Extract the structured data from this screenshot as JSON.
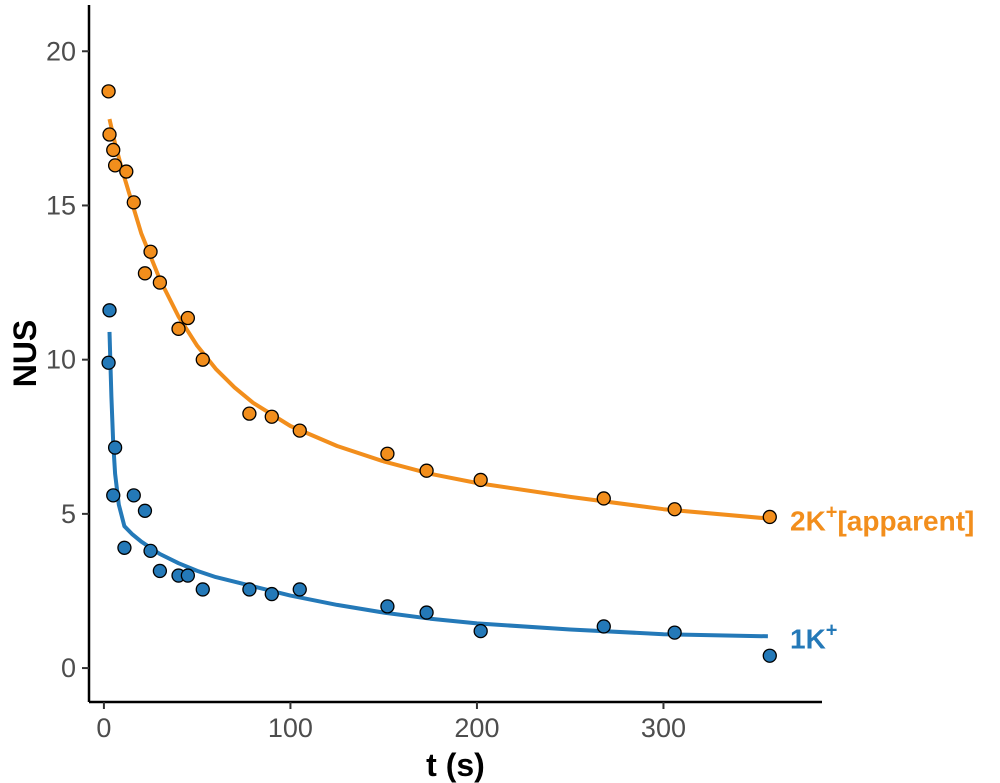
{
  "chart_data": {
    "type": "scatter",
    "xlabel": "t (s)",
    "ylabel": "NUS",
    "xlim": [
      -8,
      385
    ],
    "ylim": [
      -1.1,
      21.5
    ],
    "xticks": [
      0,
      100,
      200,
      300
    ],
    "yticks": [
      0,
      5,
      10,
      15,
      20
    ],
    "grid": false,
    "legend": "direct labels at right end of each series",
    "series": [
      {
        "name": "2K⁺[apparent]",
        "label_main": "2K",
        "label_sup": "+",
        "label_tail": "[apparent]",
        "color": "#f28e1c",
        "points": [
          {
            "x": 2.5,
            "y": 18.7
          },
          {
            "x": 3,
            "y": 17.3
          },
          {
            "x": 5,
            "y": 16.8
          },
          {
            "x": 6,
            "y": 16.3
          },
          {
            "x": 12,
            "y": 16.1
          },
          {
            "x": 16,
            "y": 15.1
          },
          {
            "x": 22,
            "y": 12.8
          },
          {
            "x": 25,
            "y": 13.5
          },
          {
            "x": 30,
            "y": 12.5
          },
          {
            "x": 40,
            "y": 11.0
          },
          {
            "x": 45,
            "y": 11.35
          },
          {
            "x": 53,
            "y": 10.0
          },
          {
            "x": 78,
            "y": 8.25
          },
          {
            "x": 90,
            "y": 8.15
          },
          {
            "x": 105,
            "y": 7.7
          },
          {
            "x": 152,
            "y": 6.95
          },
          {
            "x": 173,
            "y": 6.4
          },
          {
            "x": 202,
            "y": 6.1
          },
          {
            "x": 268,
            "y": 5.5
          },
          {
            "x": 306,
            "y": 5.15
          },
          {
            "x": 357,
            "y": 4.9
          }
        ],
        "fit": [
          {
            "x": 3,
            "y": 17.8
          },
          {
            "x": 6,
            "y": 17.0
          },
          {
            "x": 10,
            "y": 16.1
          },
          {
            "x": 15,
            "y": 15.1
          },
          {
            "x": 20,
            "y": 14.1
          },
          {
            "x": 30,
            "y": 12.6
          },
          {
            "x": 40,
            "y": 11.4
          },
          {
            "x": 50,
            "y": 10.45
          },
          {
            "x": 60,
            "y": 9.7
          },
          {
            "x": 70,
            "y": 9.1
          },
          {
            "x": 80,
            "y": 8.6
          },
          {
            "x": 100,
            "y": 7.85
          },
          {
            "x": 125,
            "y": 7.2
          },
          {
            "x": 150,
            "y": 6.7
          },
          {
            "x": 175,
            "y": 6.3
          },
          {
            "x": 200,
            "y": 6.0
          },
          {
            "x": 250,
            "y": 5.55
          },
          {
            "x": 300,
            "y": 5.15
          },
          {
            "x": 356,
            "y": 4.85
          }
        ]
      },
      {
        "name": "1K⁺",
        "label_main": "1K",
        "label_sup": "+",
        "label_tail": "",
        "color": "#2479b8",
        "points": [
          {
            "x": 3,
            "y": 11.6
          },
          {
            "x": 2.5,
            "y": 9.9
          },
          {
            "x": 6,
            "y": 7.15
          },
          {
            "x": 5,
            "y": 5.6
          },
          {
            "x": 11,
            "y": 3.9
          },
          {
            "x": 16,
            "y": 5.6
          },
          {
            "x": 22,
            "y": 5.1
          },
          {
            "x": 25,
            "y": 3.8
          },
          {
            "x": 30,
            "y": 3.15
          },
          {
            "x": 40,
            "y": 3.0
          },
          {
            "x": 45,
            "y": 3.0
          },
          {
            "x": 53,
            "y": 2.55
          },
          {
            "x": 78,
            "y": 2.55
          },
          {
            "x": 90,
            "y": 2.4
          },
          {
            "x": 105,
            "y": 2.55
          },
          {
            "x": 152,
            "y": 2.0
          },
          {
            "x": 173,
            "y": 1.8
          },
          {
            "x": 202,
            "y": 1.2
          },
          {
            "x": 268,
            "y": 1.35
          },
          {
            "x": 306,
            "y": 1.15
          },
          {
            "x": 357,
            "y": 0.4
          }
        ],
        "fit": [
          {
            "x": 3,
            "y": 10.9
          },
          {
            "x": 4,
            "y": 8.8
          },
          {
            "x": 5,
            "y": 7.3
          },
          {
            "x": 6,
            "y": 6.3
          },
          {
            "x": 8,
            "y": 5.3
          },
          {
            "x": 11,
            "y": 4.6
          },
          {
            "x": 15,
            "y": 4.35
          },
          {
            "x": 20,
            "y": 4.1
          },
          {
            "x": 30,
            "y": 3.7
          },
          {
            "x": 40,
            "y": 3.4
          },
          {
            "x": 50,
            "y": 3.15
          },
          {
            "x": 60,
            "y": 2.95
          },
          {
            "x": 80,
            "y": 2.65
          },
          {
            "x": 100,
            "y": 2.35
          },
          {
            "x": 125,
            "y": 2.05
          },
          {
            "x": 150,
            "y": 1.8
          },
          {
            "x": 175,
            "y": 1.6
          },
          {
            "x": 200,
            "y": 1.45
          },
          {
            "x": 250,
            "y": 1.25
          },
          {
            "x": 300,
            "y": 1.1
          },
          {
            "x": 356,
            "y": 1.03
          }
        ]
      }
    ]
  }
}
